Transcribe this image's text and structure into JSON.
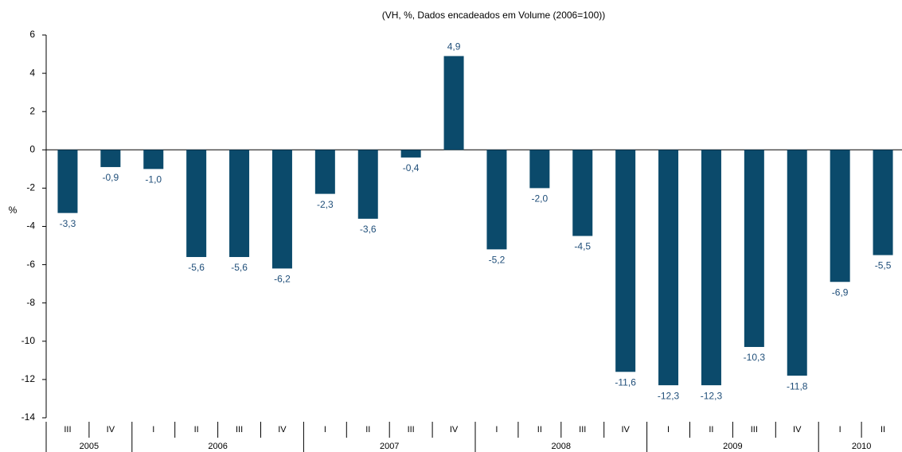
{
  "chart_data": {
    "type": "bar",
    "title": "(VH, %, Dados encadeados em Volume (2006=100))",
    "y_label": "%",
    "categories": [
      "III",
      "IV",
      "I",
      "II",
      "III",
      "IV",
      "I",
      "II",
      "III",
      "IV",
      "I",
      "II",
      "III",
      "IV",
      "I",
      "II",
      "III",
      "IV",
      "I",
      "II"
    ],
    "category_groups": [
      "2005",
      null,
      "2006",
      null,
      null,
      null,
      "2007",
      null,
      null,
      null,
      "2008",
      null,
      null,
      null,
      "2009",
      null,
      null,
      null,
      "2010",
      null
    ],
    "values": [
      -3.3,
      -0.9,
      -1.0,
      -5.6,
      -5.6,
      -6.2,
      -2.3,
      -3.6,
      -0.4,
      4.9,
      -5.2,
      -2.0,
      -4.5,
      -11.6,
      -12.3,
      -12.3,
      -10.3,
      -11.8,
      -6.9,
      -5.5
    ],
    "value_labels": [
      "-3,3",
      "-0,9",
      "-1,0",
      "-5,6",
      "-5,6",
      "-6,2",
      "-2,3",
      "-3,6",
      "-0,4",
      "4,9",
      "-5,2",
      "-2,0",
      "-4,5",
      "-11,6",
      "-12,3",
      "-12,3",
      "-10,3",
      "-11,8",
      "-6,9",
      "-5,5"
    ],
    "color": "#0b4a6b",
    "label_color": "#1f4e79",
    "ylim": [
      -14,
      6
    ],
    "yticks": [
      -14,
      -12,
      -10,
      -8,
      -6,
      -4,
      -2,
      0,
      2,
      4,
      6
    ],
    "grid": false
  }
}
